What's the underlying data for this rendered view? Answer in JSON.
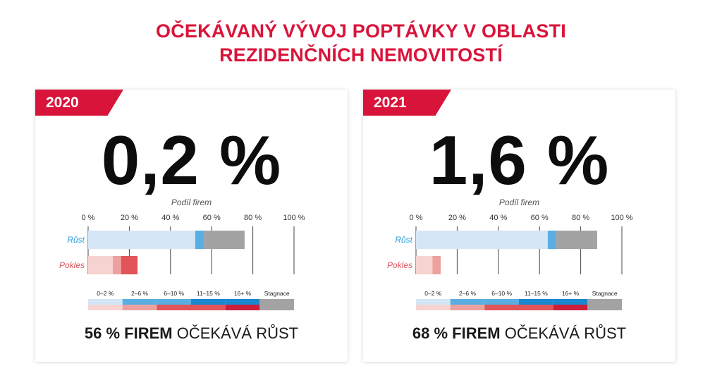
{
  "title": {
    "line1": "OČEKÁVANÝ VÝVOJ POPTÁVKY V OBLASTI",
    "line2": "REZIDENČNÍCH NEMOVITOSTÍ"
  },
  "colors": {
    "accent": "#d9143a",
    "growth_label": "#2e9fd6",
    "decline_label": "#e0545a",
    "segments": [
      "#d5e6f6",
      "#5aaee2",
      "#1b87cf",
      "#a3a3a3",
      "#f6d3d0",
      "#eda19f",
      "#e0545a",
      "#cd1e3c"
    ]
  },
  "legend": {
    "labels": [
      "0–2 %",
      "2–6 %",
      "6–10 %",
      "11–15 %",
      "16+ %",
      "Stagnace"
    ]
  },
  "chart_data": [
    {
      "type": "bar",
      "year": "2020",
      "headline": "0,2 %",
      "subtitle": "Podíl firem",
      "xlim": [
        0,
        100
      ],
      "ticks": [
        "0 %",
        "20 %",
        "40 %",
        "60 %",
        "80 %",
        "100 %"
      ],
      "categories": [
        "Růst",
        "Pokles"
      ],
      "series": [
        {
          "name": "0–2 %",
          "values": [
            52,
            12
          ]
        },
        {
          "name": "2–6 %",
          "values": [
            4,
            4
          ]
        },
        {
          "name": "6–10 %",
          "values": [
            0,
            8
          ]
        },
        {
          "name": "Stagnace",
          "values": [
            20,
            0
          ]
        }
      ],
      "footer_bold": "56 % FIREM",
      "footer_rest": "OČEKÁVÁ RŮST"
    },
    {
      "type": "bar",
      "year": "2021",
      "headline": "1,6 %",
      "subtitle": "Podíl firem",
      "xlim": [
        0,
        100
      ],
      "ticks": [
        "0 %",
        "20 %",
        "40 %",
        "60 %",
        "80 %",
        "100 %"
      ],
      "categories": [
        "Růst",
        "Pokles"
      ],
      "series": [
        {
          "name": "0–2 %",
          "values": [
            64,
            8
          ]
        },
        {
          "name": "2–6 %",
          "values": [
            4,
            4
          ]
        },
        {
          "name": "Stagnace",
          "values": [
            20,
            0
          ]
        }
      ],
      "footer_bold": "68 % FIREM",
      "footer_rest": "OČEKÁVÁ RŮST"
    }
  ]
}
